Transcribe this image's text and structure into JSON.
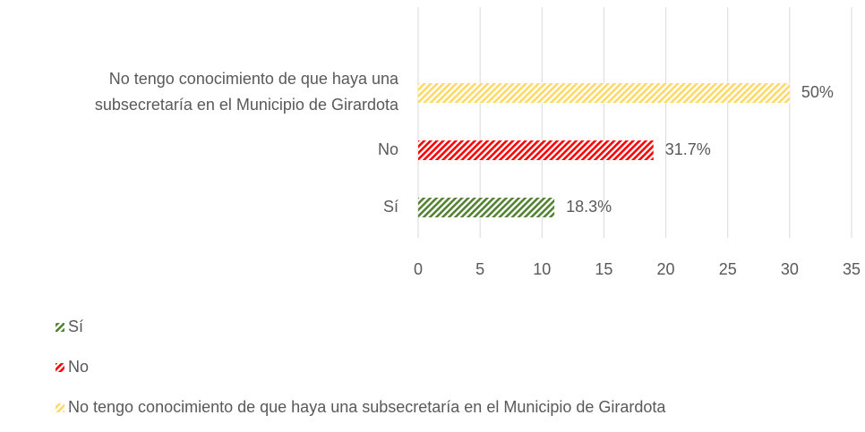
{
  "chart_data": {
    "type": "bar",
    "orientation": "horizontal",
    "categories": [
      "Sí",
      "No",
      "No tengo conocimiento de que haya una subsecretaría en el Municipio de Girardota"
    ],
    "values": [
      11,
      19,
      30
    ],
    "value_labels": [
      "18.3%",
      "31.7%",
      "50%"
    ],
    "colors": [
      "#548235",
      "#ff0000",
      "#ffd966"
    ],
    "xlim": [
      0,
      35
    ],
    "xticks": [
      0,
      5,
      10,
      15,
      20,
      25,
      30,
      35
    ],
    "grid": true,
    "legend": "bottom-left"
  }
}
